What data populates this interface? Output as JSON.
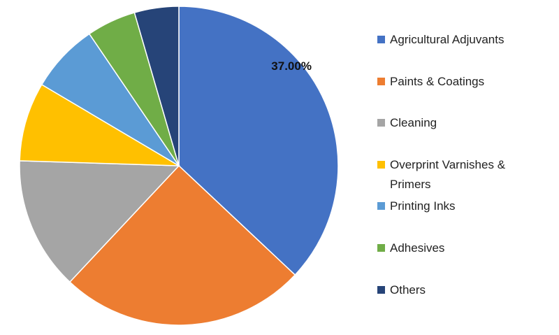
{
  "chart_data": {
    "type": "pie",
    "categories": [
      "Agricultural Adjuvants",
      "Paints & Coatings",
      "Cleaning",
      "Overprint Varnishes & Primers",
      "Printing Inks",
      "Adhesives",
      "Others"
    ],
    "values": [
      37,
      25,
      13.5,
      8,
      7,
      5,
      4.5
    ],
    "value_labels": [
      "37.00%",
      null,
      null,
      null,
      null,
      null,
      null
    ],
    "colors": [
      "#4472c4",
      "#ed7d31",
      "#a5a5a5",
      "#ffc000",
      "#5b9bd5",
      "#70ad47",
      "#264478"
    ],
    "legend": "right"
  }
}
